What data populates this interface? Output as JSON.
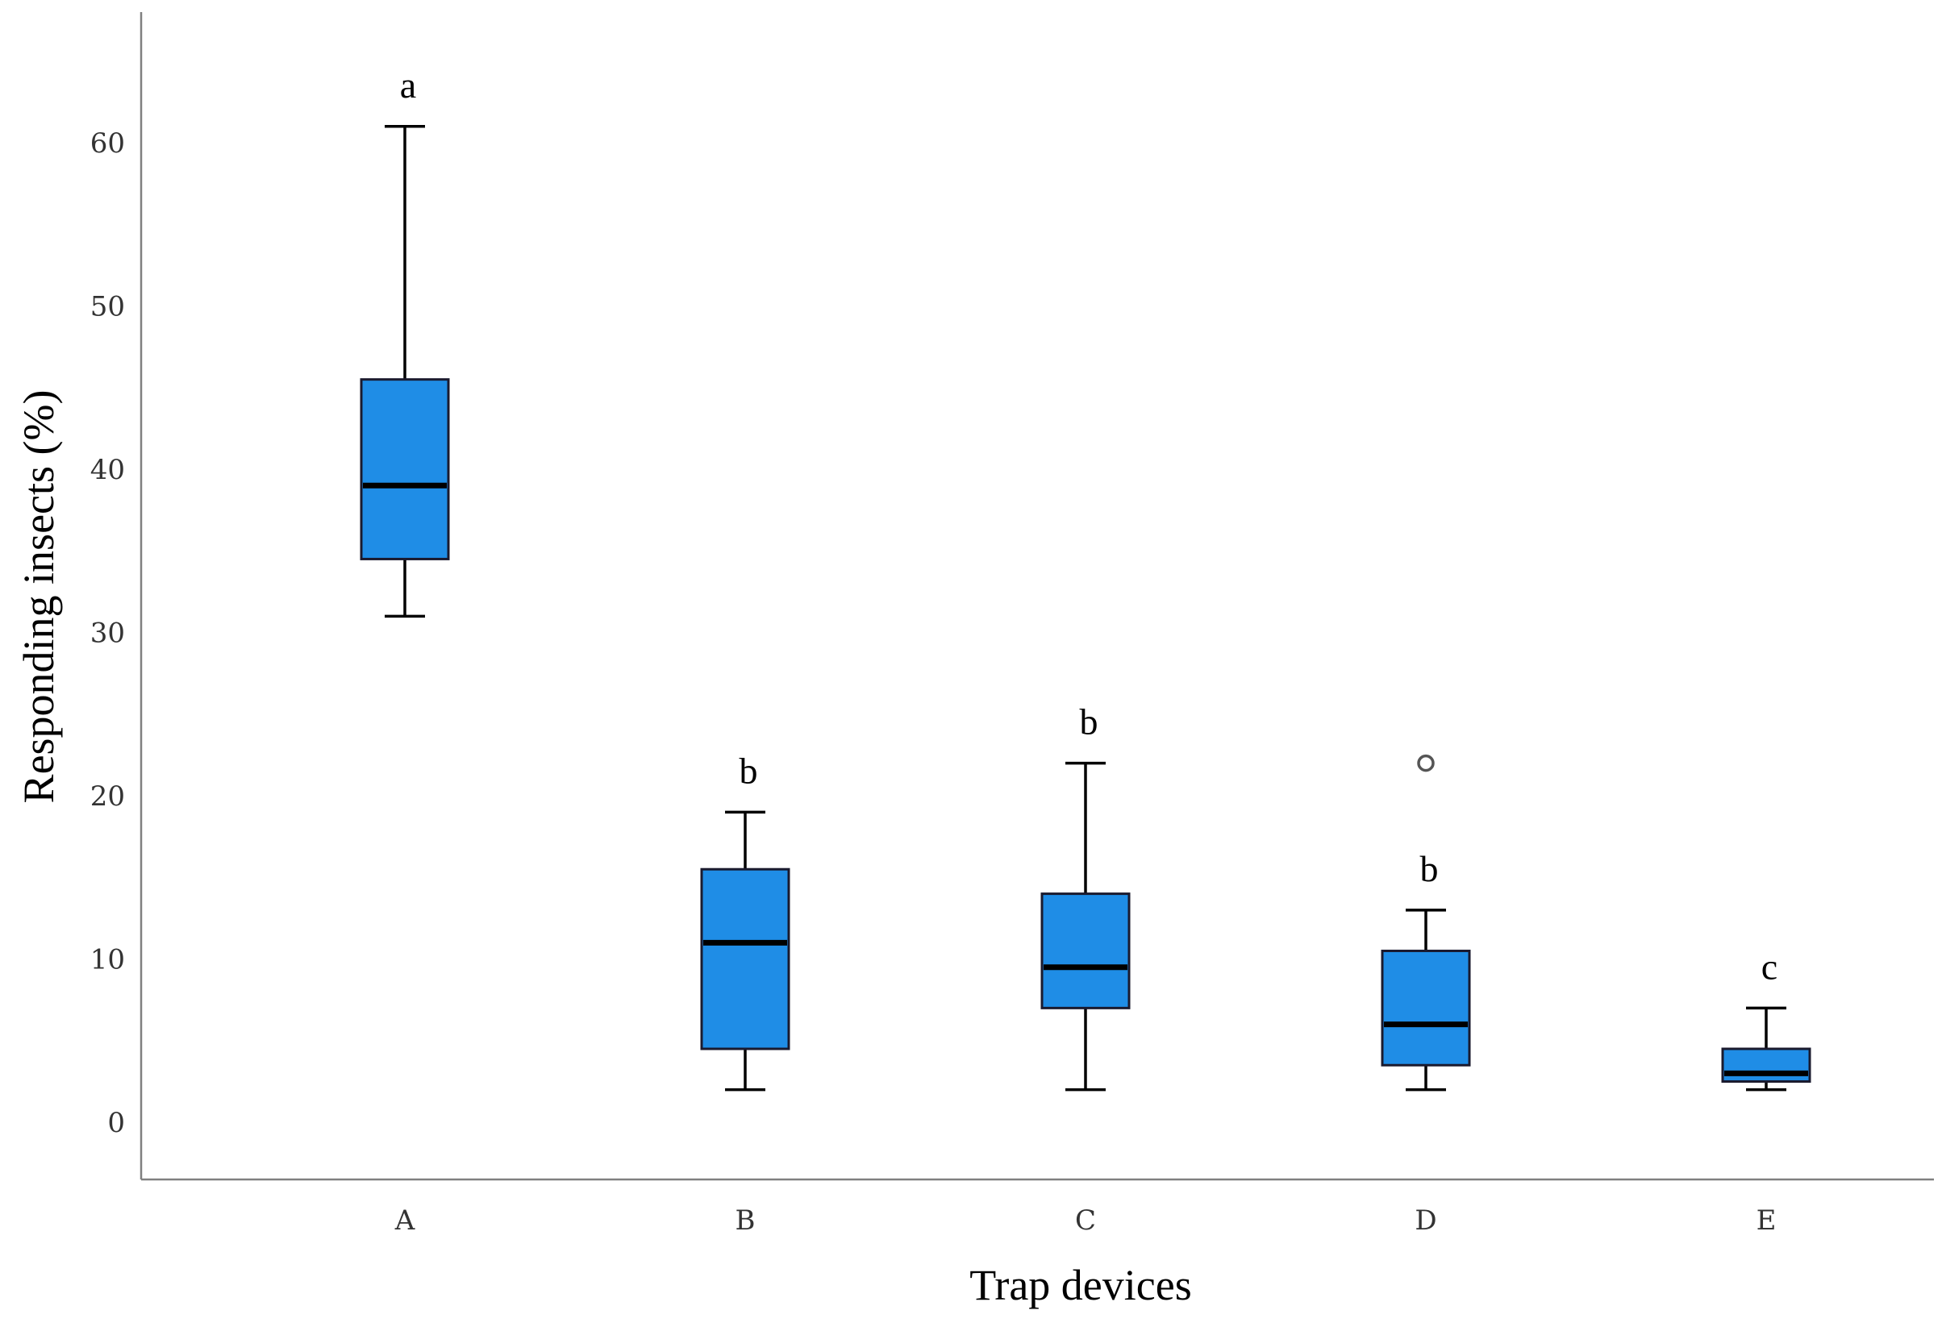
{
  "chart_data": {
    "type": "boxplot",
    "xlabel": "Trap devices",
    "ylabel": "Responding insects (%)",
    "ylim": [
      -3.5,
      68
    ],
    "yticks": [
      "0",
      "10",
      "20",
      "30",
      "40",
      "50",
      "60"
    ],
    "categories": [
      "A",
      "B",
      "C",
      "D",
      "E"
    ],
    "color": "#1f8de6",
    "boxes": [
      {
        "category": "A",
        "min": 31,
        "q1": 34.5,
        "median": 39,
        "q3": 45.5,
        "max": 61,
        "outliers": [],
        "label": "a"
      },
      {
        "category": "B",
        "min": 2,
        "q1": 4.5,
        "median": 11,
        "q3": 15.5,
        "max": 19,
        "outliers": [],
        "label": "b"
      },
      {
        "category": "C",
        "min": 2,
        "q1": 7,
        "median": 9.5,
        "q3": 14,
        "max": 22,
        "outliers": [],
        "label": "b"
      },
      {
        "category": "D",
        "min": 2,
        "q1": 3.5,
        "median": 6,
        "q3": 10.5,
        "max": 13,
        "outliers": [
          22
        ],
        "label": "b"
      },
      {
        "category": "E",
        "min": 2,
        "q1": 2.5,
        "median": 3,
        "q3": 4.5,
        "max": 7,
        "outliers": [],
        "label": "c"
      }
    ]
  }
}
